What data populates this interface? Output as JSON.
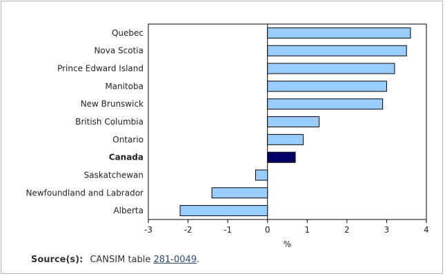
{
  "chart_data": {
    "type": "bar",
    "orientation": "horizontal",
    "categories": [
      "Quebec",
      "Nova Scotia",
      "Prince Edward Island",
      "Manitoba",
      "New Brunswick",
      "British Columbia",
      "Ontario",
      "Canada",
      "Saskatchewan",
      "Newfoundland and Labrador",
      "Alberta"
    ],
    "values": [
      3.6,
      3.5,
      3.2,
      3.0,
      2.9,
      1.3,
      0.9,
      0.7,
      -0.3,
      -1.4,
      -2.2
    ],
    "highlight_category": "Canada",
    "xlabel": "%",
    "xlim": [
      -3,
      4
    ],
    "xticks": [
      -3,
      -2,
      -1,
      0,
      1,
      2,
      3,
      4
    ],
    "grid": false,
    "colors": {
      "bar": "#99ccff",
      "highlight_bar": "#000066",
      "bar_stroke": "#000000"
    }
  },
  "source": {
    "label": "Source(s):",
    "text_prefix": "CANSIM table ",
    "link_text": "281-0049",
    "text_suffix": "."
  }
}
